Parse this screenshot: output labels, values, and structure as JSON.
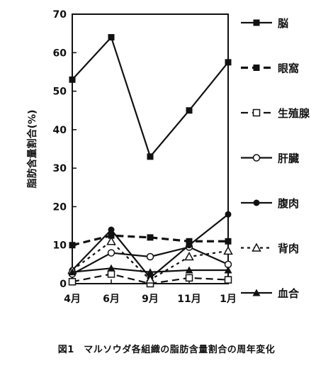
{
  "caption": "図1　マルソウダ各組織の脂肪含量割合の周年変化",
  "chart_data": {
    "type": "line",
    "ylabel": "脂肪含量割合(%)",
    "xlabel": "",
    "categories": [
      "4月",
      "6月",
      "9月",
      "11月",
      "1月"
    ],
    "ylim": [
      0,
      70
    ],
    "yticks": [
      0,
      10,
      20,
      30,
      40,
      50,
      60,
      70
    ],
    "grid": false,
    "legend_placement": "right",
    "series": [
      {
        "name": "脳",
        "values": [
          53,
          64,
          33,
          45,
          57.5
        ],
        "marker": "filled-square",
        "dash": "solid",
        "weight": "normal"
      },
      {
        "name": "眼窩",
        "values": [
          10,
          12.5,
          12,
          11,
          11
        ],
        "marker": "filled-square",
        "dash": "dashed",
        "weight": "bold"
      },
      {
        "name": "生殖腺",
        "values": [
          0.5,
          2.5,
          0,
          1.5,
          1
        ],
        "marker": "open-square",
        "dash": "dashed",
        "weight": "normal"
      },
      {
        "name": "肝臓",
        "values": [
          2.5,
          8,
          7,
          9.5,
          5
        ],
        "marker": "open-circle",
        "dash": "solid",
        "weight": "normal"
      },
      {
        "name": "腹肉",
        "values": [
          3.5,
          14,
          1.5,
          10,
          18
        ],
        "marker": "filled-circle",
        "dash": "solid",
        "weight": "normal"
      },
      {
        "name": "背肉",
        "values": [
          3.5,
          11,
          1,
          7,
          8.5
        ],
        "marker": "open-triangle",
        "dash": "dotted",
        "weight": "normal"
      },
      {
        "name": "血合",
        "values": [
          3,
          4,
          3,
          3.5,
          3.5
        ],
        "marker": "filled-triangle",
        "dash": "solid",
        "weight": "normal"
      }
    ]
  }
}
